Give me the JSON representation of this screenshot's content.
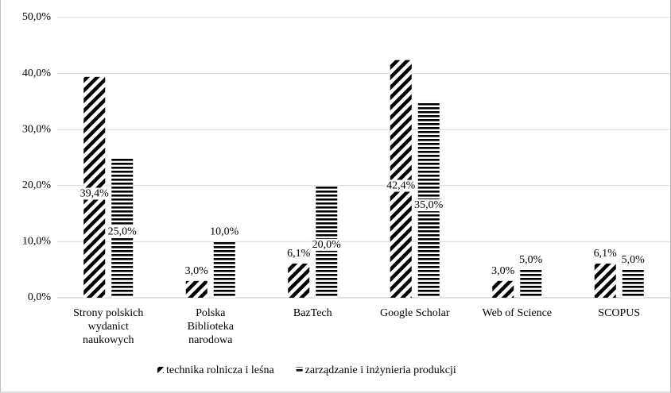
{
  "chart_data": {
    "type": "bar",
    "categories": [
      "Strony polskich\nwydanict\nnaukowych",
      "Polska\nBiblioteka\nnarodowa",
      "BazTech",
      "Google Scholar",
      "Web of Science",
      "SCOPUS"
    ],
    "series": [
      {
        "name": "technika rolnicza i leśna",
        "color": "#000000",
        "pattern": "diagonal",
        "values": [
          39.4,
          3.0,
          6.1,
          42.4,
          3.0,
          6.1
        ],
        "value_labels": [
          "39,4%",
          "3,0%",
          "6,1%",
          "42,4%",
          "3,0%",
          "6,1%"
        ]
      },
      {
        "name": "zarządzanie i inżynieria produkcji",
        "color": "#000000",
        "pattern": "horizontal",
        "values": [
          25.0,
          10.0,
          20.0,
          35.0,
          5.0,
          5.0
        ],
        "value_labels": [
          "25,0%",
          "10,0%",
          "20,0%",
          "35,0%",
          "5,0%",
          "5,0%"
        ]
      }
    ],
    "ylim": [
      0,
      50
    ],
    "yticks": [
      {
        "value": 0,
        "label": "0,0%"
      },
      {
        "value": 10,
        "label": "10,0%"
      },
      {
        "value": 20,
        "label": "20,0%"
      },
      {
        "value": 30,
        "label": "30,0%"
      },
      {
        "value": 40,
        "label": "40,0%"
      },
      {
        "value": 50,
        "label": "50,0%"
      }
    ],
    "grid": true,
    "legend": "bottom"
  }
}
